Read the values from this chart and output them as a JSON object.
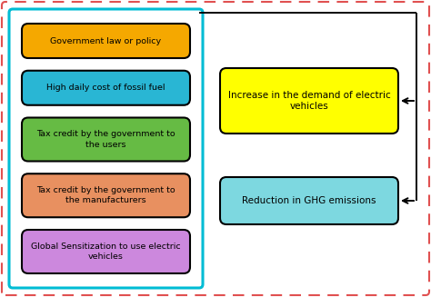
{
  "bg_color": "#ffffff",
  "outer_border_color": "#e05050",
  "left_panel_border_color": "#00bcd4",
  "left_boxes": [
    {
      "text": "Government law or policy",
      "color": "#f5a800"
    },
    {
      "text": "High daily cost of fossil fuel",
      "color": "#29b6d4"
    },
    {
      "text": "Tax credit by the government to\nthe users",
      "color": "#66bb44"
    },
    {
      "text": "Tax credit by the government to\nthe manufacturers",
      "color": "#e89060"
    },
    {
      "text": "Global Sensitization to use electric\nvehicles",
      "color": "#cc88dd"
    }
  ],
  "right_boxes": [
    {
      "text": "Increase in the demand of electric\nvehicles",
      "color": "#ffff00"
    },
    {
      "text": "Reduction in GHG emissions",
      "color": "#7dd8e0"
    }
  ]
}
